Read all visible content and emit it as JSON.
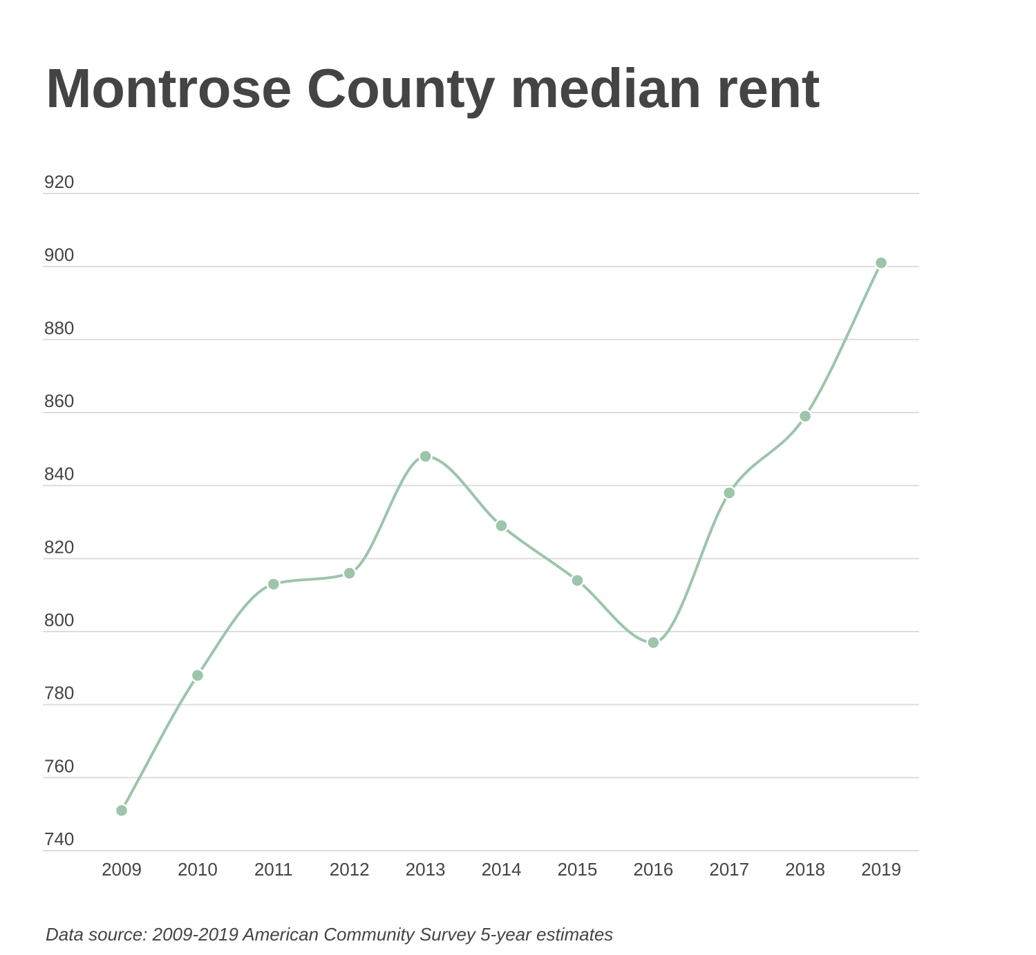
{
  "chart_data": {
    "type": "line",
    "title": "Montrose County median rent",
    "xlabel": "",
    "ylabel": "",
    "categories": [
      "2009",
      "2010",
      "2011",
      "2012",
      "2013",
      "2014",
      "2015",
      "2016",
      "2017",
      "2018",
      "2019"
    ],
    "series": [
      {
        "values": [
          751,
          788,
          813,
          816,
          848,
          829,
          814,
          797,
          838,
          859,
          901
        ]
      }
    ],
    "ylim": [
      740,
      920
    ],
    "yticks": [
      "740",
      "760",
      "780",
      "800",
      "820",
      "840",
      "860",
      "880",
      "900",
      "920"
    ],
    "grid": true,
    "legend": "none",
    "line_color": "#9cc5ab",
    "grid_color": "#dddddd",
    "source": "Data source: 2009-2019 American Community Survey 5-year estimates"
  }
}
